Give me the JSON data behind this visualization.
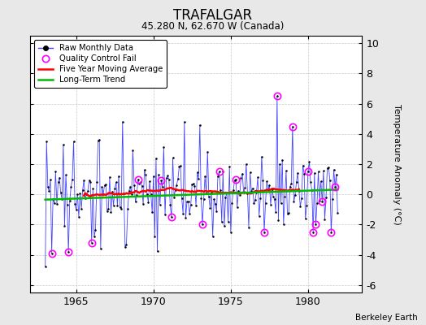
{
  "title": "TRAFALGAR",
  "subtitle": "45.280 N, 62.670 W (Canada)",
  "credit": "Berkeley Earth",
  "ylabel": "Temperature Anomaly (°C)",
  "xlim": [
    1962.0,
    1983.5
  ],
  "ylim": [
    -6.5,
    10.5
  ],
  "yticks": [
    -6,
    -4,
    -2,
    0,
    2,
    4,
    6,
    8,
    10
  ],
  "xticks": [
    1965,
    1970,
    1975,
    1980
  ],
  "background_color": "#e8e8e8",
  "plot_bg_color": "#ffffff",
  "raw_color": "#4444ff",
  "ma_color": "#ff0000",
  "trend_color": "#00bb00",
  "qc_color": "#ff00ff",
  "seed": 17
}
